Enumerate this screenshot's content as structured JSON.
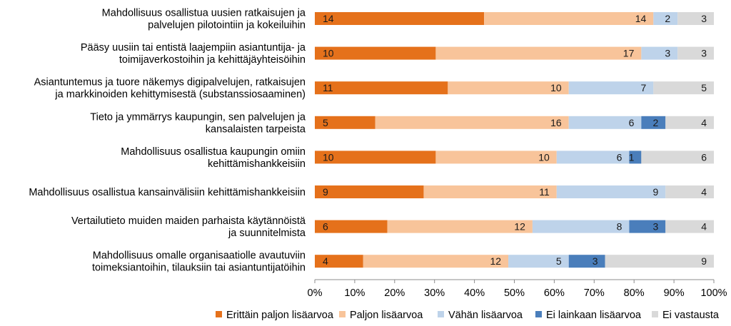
{
  "chart_data": {
    "type": "bar",
    "orientation": "horizontal",
    "stacked": "percent",
    "categories": [
      [
        "Mahdollisuus osallistua uusien ratkaisujen ja",
        "palvelujen pilotointiin ja kokeiluihin"
      ],
      [
        "Pääsy uusiin tai entistä laajempiin asiantuntija- ja",
        "toimijaverkostoihin ja kehittäjäyhteisöihin"
      ],
      [
        "Asiantuntemus ja tuore näkemys digipalvelujen, ratkaisujen",
        "ja markkinoiden kehittymisestä (substanssiosaaminen)"
      ],
      [
        "Tieto ja ymmärrys kaupungin, sen palvelujen ja",
        "kansalaisten tarpeista"
      ],
      [
        "Mahdollisuus osallistua kaupungin omiin",
        "kehittämishankkeisiin"
      ],
      [
        "Mahdollisuus osallistua kansainvälisiin kehittämishankkeisiin"
      ],
      [
        "Vertailutieto muiden maiden parhaista käytännöistä",
        "ja suunnitelmista"
      ],
      [
        "Mahdollisuus omalle organisaatiolle avautuviin",
        "toimeksiantoihin, tilauksiin tai asiantuntijatöihin"
      ]
    ],
    "series": [
      {
        "name": "Erittäin paljon lisäarvoa",
        "color": "#e5711b",
        "values": [
          14,
          10,
          11,
          5,
          10,
          9,
          6,
          4
        ]
      },
      {
        "name": "Paljon lisäarvoa",
        "color": "#f8c49a",
        "values": [
          14,
          17,
          10,
          16,
          10,
          11,
          12,
          12
        ]
      },
      {
        "name": "Vähän lisäarvoa",
        "color": "#bed3ea",
        "values": [
          2,
          3,
          7,
          6,
          6,
          9,
          8,
          5
        ]
      },
      {
        "name": "Ei lainkaan lisäarvoa",
        "color": "#4a7ebb",
        "values": [
          0,
          0,
          0,
          2,
          1,
          0,
          3,
          3
        ]
      },
      {
        "name": "Ei vastausta",
        "color": "#d9d9d9",
        "values": [
          3,
          3,
          5,
          4,
          6,
          4,
          4,
          9
        ]
      }
    ],
    "xticks": [
      "0%",
      "10%",
      "20%",
      "30%",
      "40%",
      "50%",
      "60%",
      "70%",
      "80%",
      "90%",
      "100%"
    ],
    "xlim": [
      0,
      100
    ],
    "legend": "bottom",
    "grid": false
  }
}
